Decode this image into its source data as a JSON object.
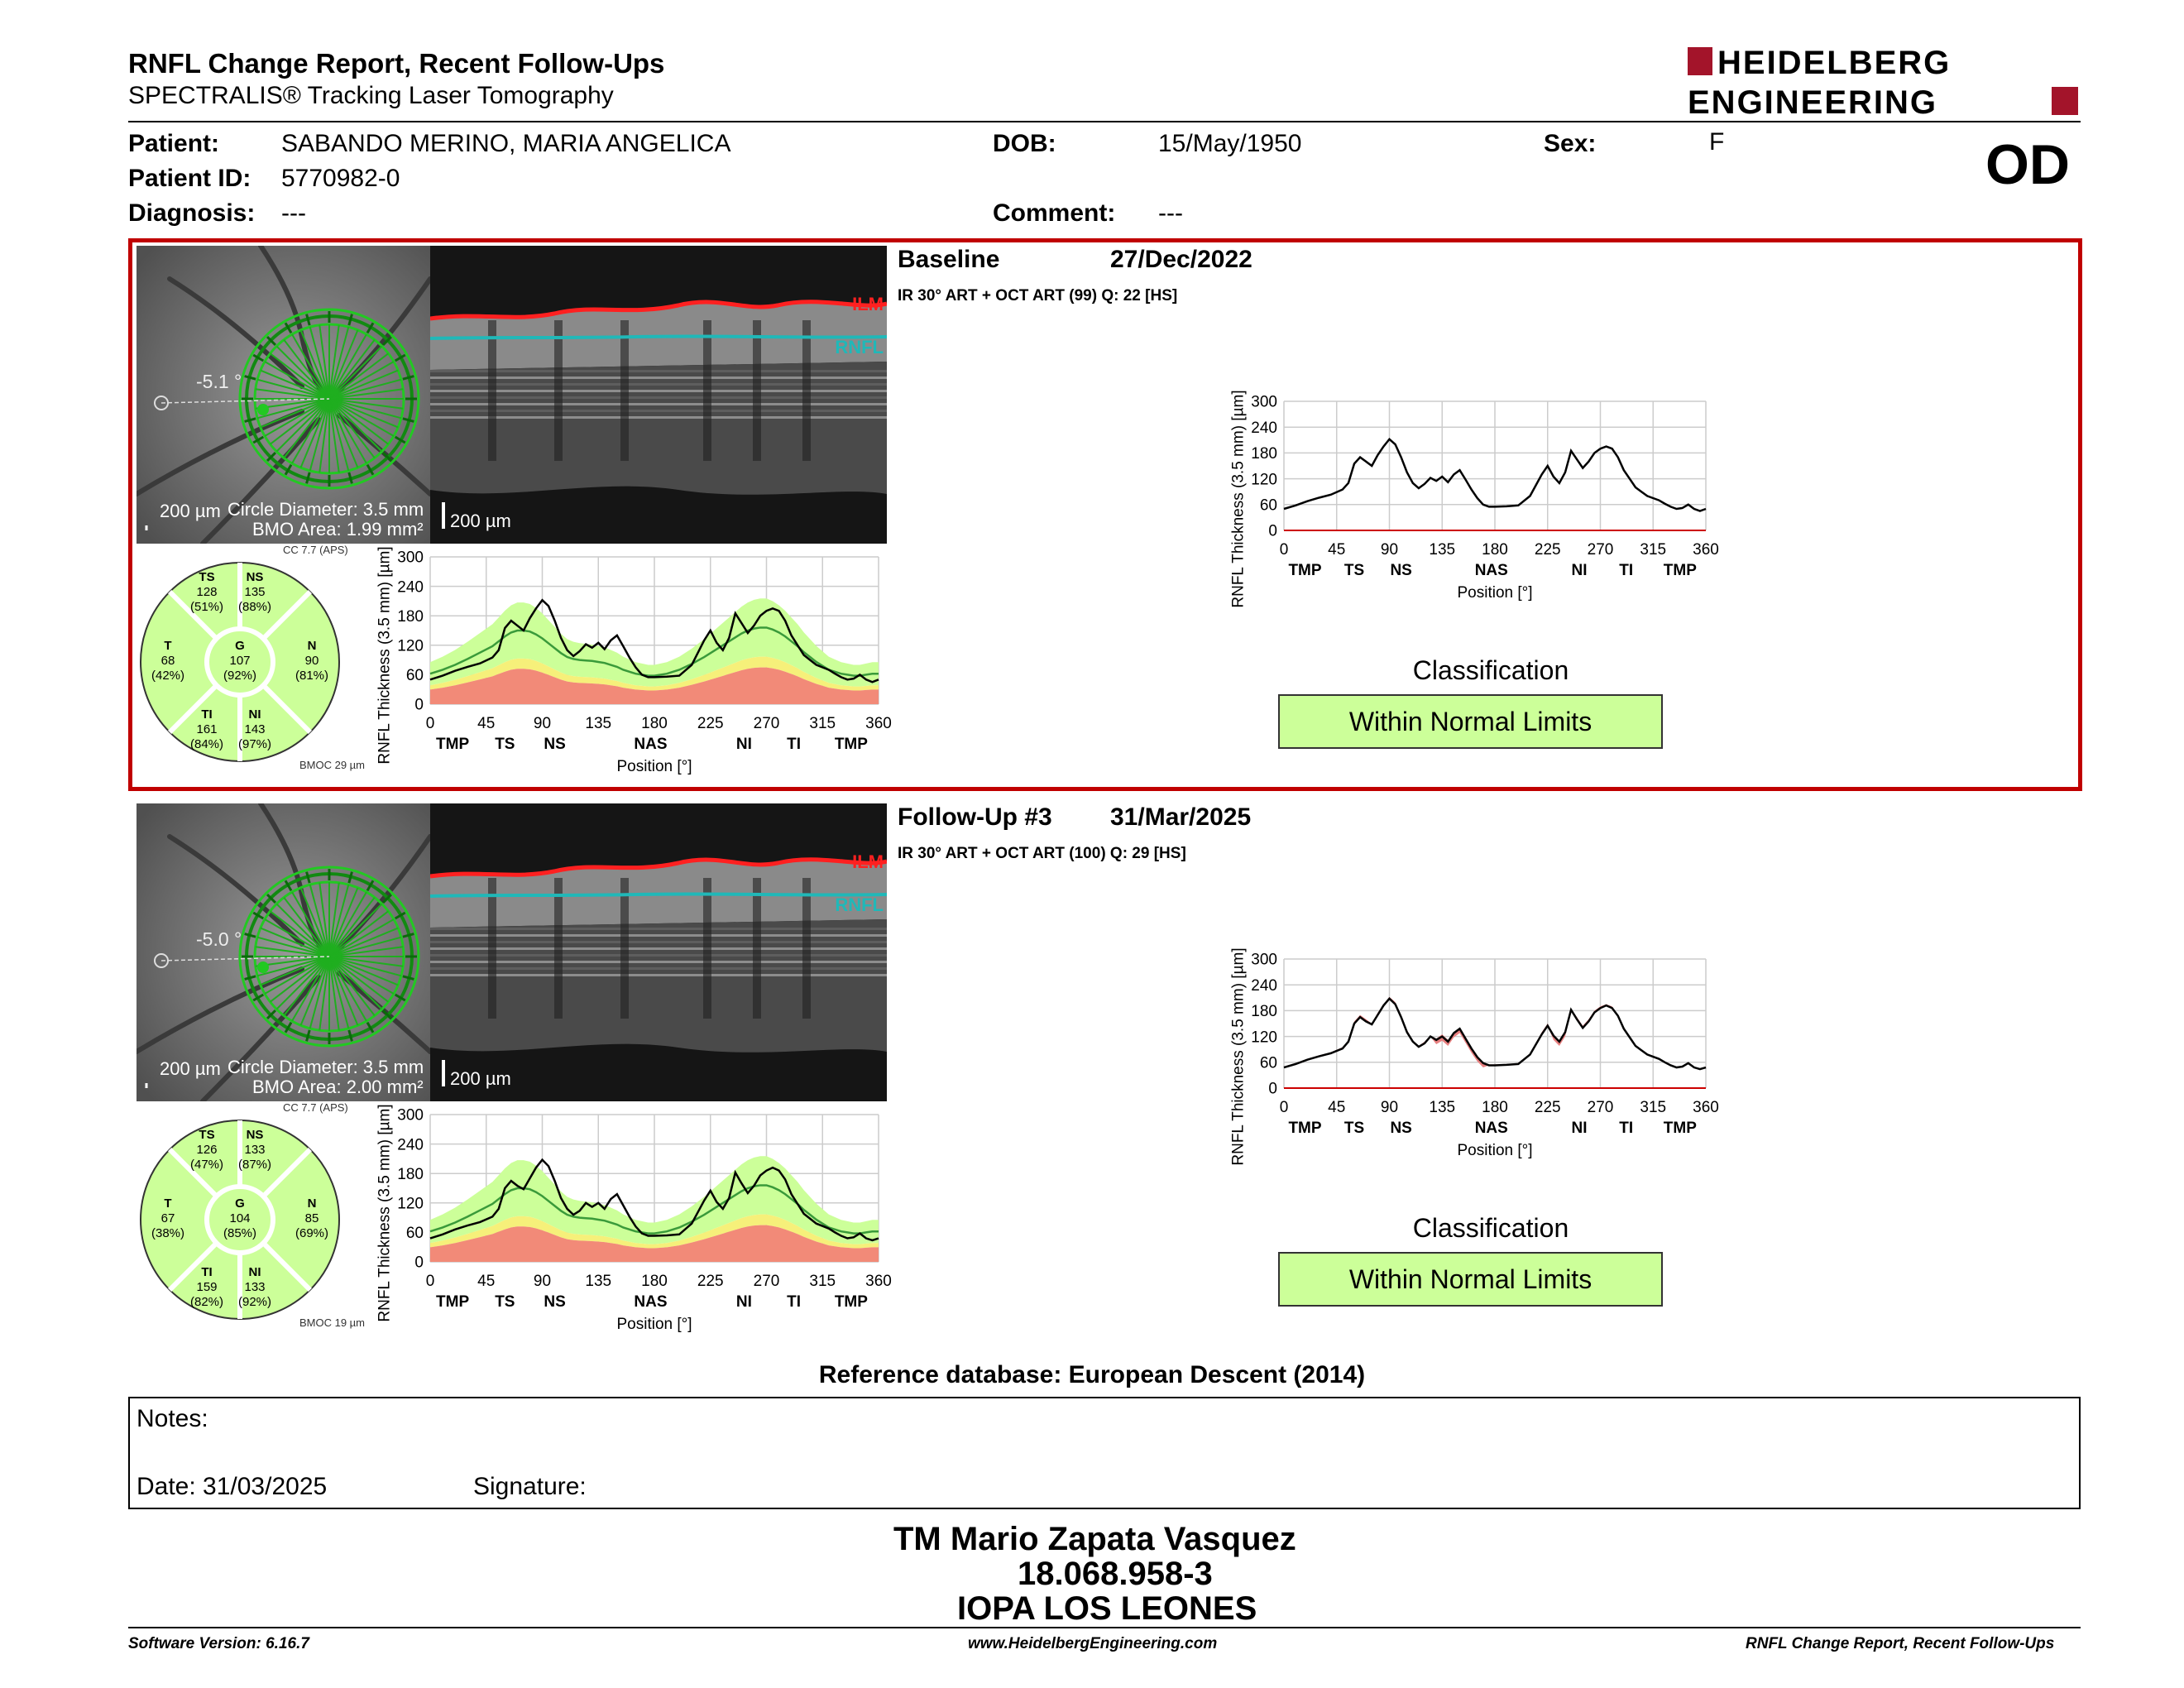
{
  "header": {
    "title": "RNFL Change Report, Recent Follow-Ups",
    "subtitle": "SPECTRALIS® Tracking Laser Tomography",
    "logo_line1": "HEIDELBERG",
    "logo_line2": "ENGINEERING",
    "eye": "OD"
  },
  "patient": {
    "patient_label": "Patient:",
    "patient_name": "SABANDO MERINO, MARIA ANGELICA",
    "id_label": "Patient ID:",
    "id": "5770982-0",
    "diagnosis_label": "Diagnosis:",
    "diagnosis": "---",
    "dob_label": "DOB:",
    "dob": "15/May/1950",
    "comment_label": "Comment:",
    "comment": "---",
    "sex_label": "Sex:",
    "sex": "F"
  },
  "exams": [
    {
      "title": "Baseline",
      "date": "27/Dec/2022",
      "scan_info": "IR 30° ART + OCT ART (99) Q: 22 [HS]",
      "angle": "-5.1 °",
      "fundus_scale": "200 µm",
      "circle_diameter": "Circle Diameter: 3.5 mm",
      "bmo_area": "BMO Area: 1.99 mm²",
      "bscan_scale": "200 µm",
      "ilm": "ILM",
      "rnfl": "RNFL",
      "cc": "CC 7.7 (APS)",
      "bmoc": "BMOC 29 µm",
      "sectors": {
        "TS": {
          "label": "TS",
          "value": "128",
          "pct": "(51%)"
        },
        "NS": {
          "label": "NS",
          "value": "135",
          "pct": "(88%)"
        },
        "T": {
          "label": "T",
          "value": "68",
          "pct": "(42%)"
        },
        "G": {
          "label": "G",
          "value": "107",
          "pct": "(92%)"
        },
        "N": {
          "label": "N",
          "value": "90",
          "pct": "(81%)"
        },
        "TI": {
          "label": "TI",
          "value": "161",
          "pct": "(84%)"
        },
        "NI": {
          "label": "NI",
          "value": "143",
          "pct": "(97%)"
        }
      },
      "classification_label": "Classification",
      "classification": "Within Normal Limits"
    },
    {
      "title": "Follow-Up #3",
      "date": "31/Mar/2025",
      "scan_info": "IR 30° ART + OCT ART (100) Q: 29 [HS]",
      "angle": "-5.0 °",
      "fundus_scale": "200 µm",
      "circle_diameter": "Circle Diameter: 3.5 mm",
      "bmo_area": "BMO Area: 2.00 mm²",
      "bscan_scale": "200 µm",
      "ilm": "ILM",
      "rnfl": "RNFL",
      "cc": "CC 7.7 (APS)",
      "bmoc": "BMOC 19 µm",
      "sectors": {
        "TS": {
          "label": "TS",
          "value": "126",
          "pct": "(47%)"
        },
        "NS": {
          "label": "NS",
          "value": "133",
          "pct": "(87%)"
        },
        "T": {
          "label": "T",
          "value": "67",
          "pct": "(38%)"
        },
        "G": {
          "label": "G",
          "value": "104",
          "pct": "(85%)"
        },
        "N": {
          "label": "N",
          "value": "85",
          "pct": "(69%)"
        },
        "TI": {
          "label": "TI",
          "value": "159",
          "pct": "(82%)"
        },
        "NI": {
          "label": "NI",
          "value": "133",
          "pct": "(92%)"
        }
      },
      "classification_label": "Classification",
      "classification": "Within Normal Limits"
    }
  ],
  "chart_data": {
    "type": "line",
    "ylabel": "RNFL Thickness (3.5 mm) [µm]",
    "xlabel": "Position [°]",
    "xlim": [
      0,
      360
    ],
    "ylim": [
      0,
      300
    ],
    "x_ticks": [
      0,
      45,
      90,
      135,
      180,
      225,
      270,
      315,
      360
    ],
    "y_ticks": [
      0,
      60,
      120,
      180,
      240,
      300
    ],
    "sector_ticks": [
      {
        "x": 18,
        "label": "TMP"
      },
      {
        "x": 60,
        "label": "TS"
      },
      {
        "x": 100,
        "label": "NS"
      },
      {
        "x": 177,
        "label": "NAS"
      },
      {
        "x": 252,
        "label": "NI"
      },
      {
        "x": 292,
        "label": "TI"
      },
      {
        "x": 338,
        "label": "TMP"
      }
    ],
    "x": [
      0,
      10,
      20,
      30,
      40,
      50,
      55,
      60,
      65,
      70,
      75,
      80,
      85,
      90,
      95,
      100,
      105,
      110,
      115,
      120,
      125,
      130,
      135,
      140,
      145,
      150,
      155,
      160,
      165,
      170,
      175,
      180,
      190,
      200,
      210,
      220,
      225,
      230,
      235,
      240,
      245,
      250,
      255,
      260,
      265,
      270,
      275,
      280,
      285,
      290,
      295,
      300,
      305,
      310,
      315,
      320,
      325,
      330,
      335,
      340,
      345,
      350,
      355,
      360
    ],
    "series": [
      {
        "values": [
          50,
          58,
          68,
          76,
          83,
          95,
          110,
          155,
          170,
          160,
          150,
          175,
          195,
          212,
          200,
          170,
          135,
          110,
          98,
          108,
          122,
          115,
          125,
          112,
          130,
          140,
          118,
          95,
          75,
          60,
          55,
          55,
          56,
          58,
          80,
          130,
          150,
          125,
          110,
          135,
          185,
          165,
          145,
          160,
          180,
          190,
          195,
          190,
          170,
          140,
          120,
          100,
          90,
          80,
          75,
          70,
          62,
          55,
          50,
          52,
          60,
          50,
          45,
          50
        ]
      },
      {
        "values": [
          48,
          56,
          66,
          74,
          81,
          92,
          108,
          150,
          165,
          155,
          148,
          170,
          192,
          208,
          195,
          165,
          130,
          108,
          96,
          104,
          120,
          112,
          120,
          108,
          128,
          138,
          115,
          92,
          72,
          58,
          53,
          53,
          54,
          56,
          78,
          125,
          145,
          122,
          108,
          130,
          182,
          160,
          140,
          155,
          176,
          186,
          192,
          186,
          168,
          138,
          118,
          98,
          88,
          78,
          73,
          68,
          60,
          53,
          48,
          50,
          58,
          48,
          44,
          48
        ]
      }
    ],
    "normative_mean": [
      62,
      70,
      80,
      92,
      105,
      118,
      128,
      138,
      146,
      150,
      150,
      148,
      142,
      134,
      124,
      114,
      104,
      96,
      92,
      90,
      89,
      88,
      86,
      84,
      80,
      76,
      70,
      66,
      62,
      60,
      58,
      58,
      62,
      70,
      82,
      96,
      104,
      112,
      120,
      128,
      136,
      144,
      150,
      154,
      156,
      156,
      152,
      146,
      138,
      128,
      118,
      106,
      96,
      86,
      78,
      70,
      66,
      62,
      60,
      58,
      58,
      60,
      62,
      62
    ],
    "legend": "none"
  },
  "reference_db": "Reference database: European Descent (2014)",
  "notes": {
    "notes_label": "Notes:",
    "date": "Date: 31/03/2025",
    "signature": "Signature:"
  },
  "signature_block": {
    "name": "TM Mario Zapata Vasquez",
    "id": "18.068.958-3",
    "clinic": "IOPA LOS LEONES"
  },
  "footer": {
    "left": "Software Version: 6.16.7",
    "center": "www.HeidelbergEngineering.com",
    "right": "RNFL Change Report, Recent Follow-Ups"
  },
  "colors": {
    "accent_red": "#c00000",
    "normal_green": "#ccff99",
    "borderline_yellow": "#f6f07a",
    "outside_red": "#f28a78",
    "ilm_red": "#ff2020",
    "rnfl_cyan": "#20b8b8",
    "scan_green": "#22c922"
  }
}
